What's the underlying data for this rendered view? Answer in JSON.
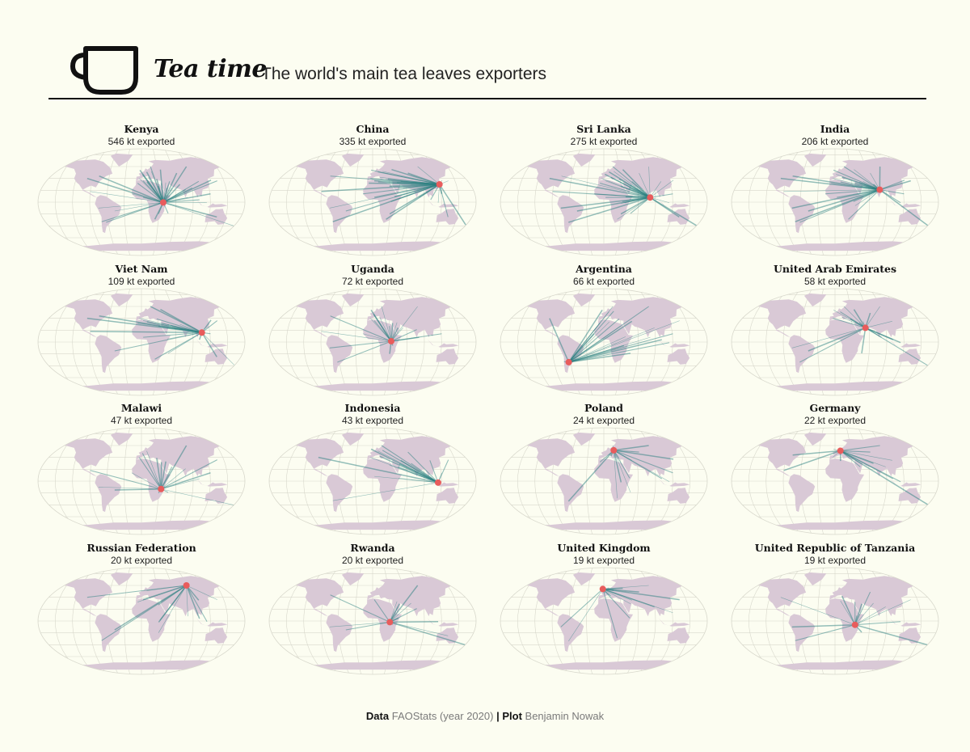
{
  "header": {
    "title": "Tea time",
    "subtitle": "The world's main tea leaves exporters"
  },
  "colors": {
    "background": "#fcfdf1",
    "land": "#d9c9d6",
    "flow": "#2a7f7f",
    "origin": "#e85c5c",
    "graticule": "#d8d8cc"
  },
  "icons": [
    "tea-cup-icon"
  ],
  "chart_data": {
    "type": "map",
    "title": "Tea time",
    "subtitle": "The world's main tea leaves exporters",
    "unit": "kt exported",
    "exporters": [
      {
        "country": "Kenya",
        "volume_text": "546 kt exported",
        "kt": 546,
        "lon": 37.9,
        "lat": -0.5
      },
      {
        "country": "China",
        "volume_text": "335 kt exported",
        "kt": 335,
        "lon": 120.0,
        "lat": 30.0
      },
      {
        "country": "Sri Lanka",
        "volume_text": "275 kt exported",
        "kt": 275,
        "lon": 80.7,
        "lat": 7.9
      },
      {
        "country": "India",
        "volume_text": "206 kt exported",
        "kt": 206,
        "lon": 79.0,
        "lat": 21.0
      },
      {
        "country": "Viet Nam",
        "volume_text": "109 kt exported",
        "kt": 109,
        "lon": 106.0,
        "lat": 16.0
      },
      {
        "country": "Uganda",
        "volume_text": "72 kt exported",
        "kt": 72,
        "lon": 32.3,
        "lat": 1.4
      },
      {
        "country": "Argentina",
        "volume_text": "66 kt exported",
        "kt": 66,
        "lon": -63.6,
        "lat": -34.0
      },
      {
        "country": "United Arab Emirates",
        "volume_text": "58 kt exported",
        "kt": 58,
        "lon": 54.0,
        "lat": 24.0
      },
      {
        "country": "Malawi",
        "volume_text": "47 kt exported",
        "kt": 47,
        "lon": 34.3,
        "lat": -13.3
      },
      {
        "country": "Indonesia",
        "volume_text": "43 kt exported",
        "kt": 43,
        "lon": 113.9,
        "lat": -2.5
      },
      {
        "country": "Poland",
        "volume_text": "24 kt exported",
        "kt": 24,
        "lon": 19.1,
        "lat": 52.0
      },
      {
        "country": "Germany",
        "volume_text": "22 kt exported",
        "kt": 22,
        "lon": 10.4,
        "lat": 51.2
      },
      {
        "country": "Russian Federation",
        "volume_text": "20 kt exported",
        "kt": 20,
        "lon": 90.0,
        "lat": 60.0
      },
      {
        "country": "Rwanda",
        "volume_text": "20 kt exported",
        "kt": 20,
        "lon": 29.9,
        "lat": -1.9
      },
      {
        "country": "United Kingdom",
        "volume_text": "19 kt exported",
        "kt": 19,
        "lon": -2.0,
        "lat": 54.0
      },
      {
        "country": "United Republic of Tanzania",
        "volume_text": "19 kt exported",
        "kt": 19,
        "lon": 34.9,
        "lat": -6.4
      }
    ]
  },
  "footer": {
    "data_label": "Data",
    "data_source": "FAOStats  (year 2020)",
    "separator": "|",
    "plot_label": "Plot",
    "plot_author": "Benjamin Nowak"
  }
}
